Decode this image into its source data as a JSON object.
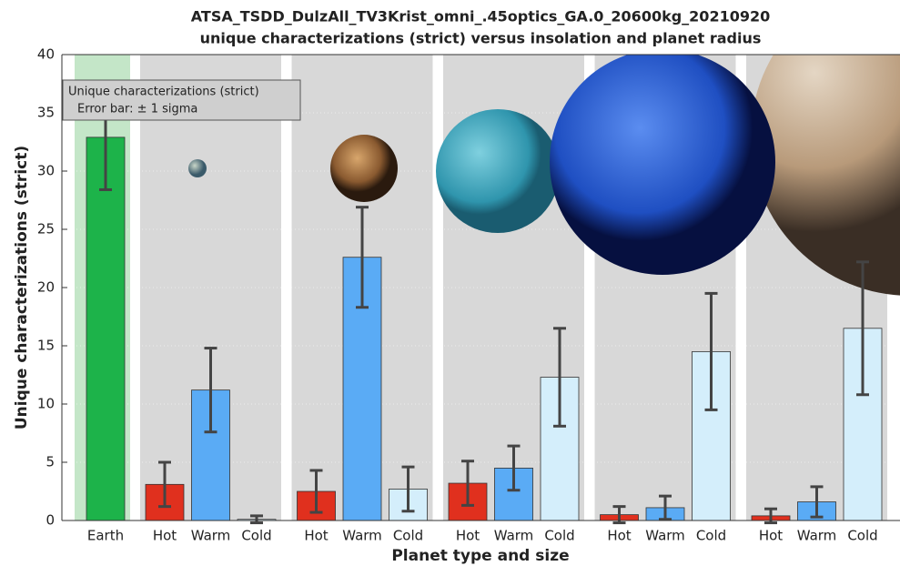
{
  "chart_data": {
    "type": "bar",
    "title": "ATSA_TSDD_DulzAll_TV3Krist_omni_.45optics_GA.0_20600kg_20210920",
    "subtitle": "unique characterizations (strict) versus insolation and planet  radius",
    "x_label": "Planet type and size",
    "y_label": "Unique characterizations (strict)",
    "legend": [
      "Unique characterizations (strict)",
      "Error bar: ± 1 sigma"
    ],
    "categories": [
      "Earth",
      "Hot",
      "Warm",
      "Cold",
      "Hot",
      "Warm",
      "Cold",
      "Hot",
      "Warm",
      "Cold",
      "Hot",
      "Warm",
      "Cold",
      "Hot",
      "Warm",
      "Cold"
    ],
    "values": [
      32.9,
      3.1,
      11.2,
      0.1,
      2.5,
      22.6,
      2.7,
      3.2,
      4.5,
      12.3,
      0.5,
      1.1,
      14.5,
      0.4,
      1.6,
      16.5
    ],
    "errors": [
      4.5,
      1.9,
      3.6,
      0.3,
      1.8,
      4.3,
      1.9,
      1.9,
      1.9,
      4.2,
      0.7,
      1.0,
      5.0,
      0.6,
      1.3,
      5.7
    ],
    "colors": [
      "#1db34a",
      "#e0301e",
      "#5aabf5",
      "#d4eefb",
      "#e0301e",
      "#5aabf5",
      "#d4eefb",
      "#e0301e",
      "#5aabf5",
      "#d4eefb",
      "#e0301e",
      "#5aabf5",
      "#d4eefb",
      "#e0301e",
      "#5aabf5",
      "#d4eefb"
    ],
    "ylim": [
      0,
      40
    ],
    "yticks": [
      0,
      5,
      10,
      15,
      20,
      25,
      30,
      35,
      40
    ],
    "grid": true
  }
}
